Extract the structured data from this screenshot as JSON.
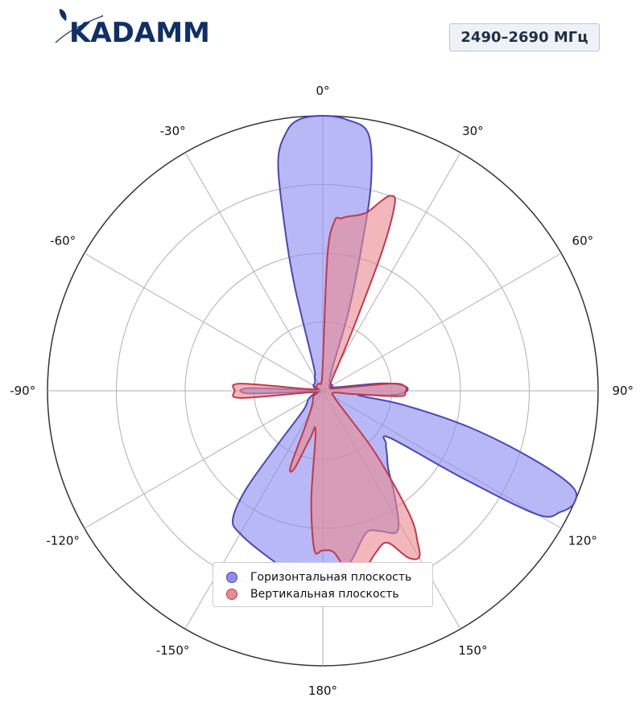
{
  "header": {
    "logo_text": "KADAMM",
    "frequency_badge": "2490–2690 МГц"
  },
  "colors": {
    "horizontal_fill": "#8c8cf0",
    "horizontal_stroke": "#4a46b8",
    "vertical_fill": "#e88a92",
    "vertical_stroke": "#c0394a",
    "grid": "#b0b0b0",
    "outer_ring": "#333333",
    "logo": "#0f2f66"
  },
  "chart_data": {
    "type": "polar-area",
    "angle_direction": "clockwise",
    "zero_position": "top",
    "angle_ticks": [
      0,
      30,
      60,
      90,
      120,
      150,
      180,
      -150,
      -120,
      -90,
      -60,
      -30
    ],
    "angle_tick_labels": [
      "0°",
      "30°",
      "60°",
      "90°",
      "120°",
      "150°",
      "180°",
      "-150°",
      "-120°",
      "-90°",
      "-60°",
      "-30°"
    ],
    "radial_grid": [
      0.25,
      0.5,
      0.75,
      1.0
    ],
    "rmax": 1.0,
    "legend_position": "bottom-center",
    "series": [
      {
        "name": "Горизонтальная плоскость",
        "points": [
          [
            0,
            1.0
          ],
          [
            5,
            0.99
          ],
          [
            10,
            0.95
          ],
          [
            13,
            0.78
          ],
          [
            15,
            0.55
          ],
          [
            18,
            0.3
          ],
          [
            22,
            0.1
          ],
          [
            30,
            0.05
          ],
          [
            45,
            0.04
          ],
          [
            60,
            0.04
          ],
          [
            75,
            0.05
          ],
          [
            83,
            0.22
          ],
          [
            87,
            0.3
          ],
          [
            91,
            0.3
          ],
          [
            94,
            0.24
          ],
          [
            97,
            0.13
          ],
          [
            100,
            0.3
          ],
          [
            104,
            0.55
          ],
          [
            108,
            0.8
          ],
          [
            111,
            0.97
          ],
          [
            114,
            1.0
          ],
          [
            117,
            0.97
          ],
          [
            120,
            0.9
          ],
          [
            122,
            0.6
          ],
          [
            125,
            0.3
          ],
          [
            130,
            0.3
          ],
          [
            135,
            0.33
          ],
          [
            140,
            0.37
          ],
          [
            145,
            0.45
          ],
          [
            150,
            0.55
          ],
          [
            153,
            0.58
          ],
          [
            158,
            0.55
          ],
          [
            163,
            0.54
          ],
          [
            170,
            0.62
          ],
          [
            175,
            0.68
          ],
          [
            180,
            0.69
          ],
          [
            185,
            0.68
          ],
          [
            190,
            0.67
          ],
          [
            200,
            0.63
          ],
          [
            210,
            0.6
          ],
          [
            215,
            0.57
          ],
          [
            218,
            0.45
          ],
          [
            220,
            0.25
          ],
          [
            225,
            0.1
          ],
          [
            240,
            0.06
          ],
          [
            255,
            0.03
          ],
          [
            265,
            0.03
          ],
          [
            268,
            0.27
          ],
          [
            272,
            0.27
          ],
          [
            275,
            0.03
          ],
          [
            285,
            0.03
          ],
          [
            300,
            0.04
          ],
          [
            315,
            0.04
          ],
          [
            330,
            0.06
          ],
          [
            340,
            0.1
          ],
          [
            345,
            0.4
          ],
          [
            347,
            0.62
          ],
          [
            349,
            0.85
          ],
          [
            352,
            0.95
          ],
          [
            355,
            0.99
          ],
          [
            360,
            1.0
          ]
        ]
      },
      {
        "name": "Вертикальная плоскость",
        "points": [
          [
            0,
            0.1
          ],
          [
            2,
            0.5
          ],
          [
            4,
            0.62
          ],
          [
            6,
            0.63
          ],
          [
            8,
            0.64
          ],
          [
            11,
            0.65
          ],
          [
            14,
            0.67
          ],
          [
            17,
            0.72
          ],
          [
            19,
            0.75
          ],
          [
            21,
            0.73
          ],
          [
            23,
            0.55
          ],
          [
            26,
            0.25
          ],
          [
            30,
            0.12
          ],
          [
            40,
            0.05
          ],
          [
            55,
            0.03
          ],
          [
            70,
            0.03
          ],
          [
            80,
            0.05
          ],
          [
            84,
            0.25
          ],
          [
            87,
            0.3
          ],
          [
            91,
            0.3
          ],
          [
            94,
            0.28
          ],
          [
            96,
            0.12
          ],
          [
            100,
            0.04
          ],
          [
            120,
            0.05
          ],
          [
            130,
            0.08
          ],
          [
            140,
            0.3
          ],
          [
            145,
            0.55
          ],
          [
            148,
            0.65
          ],
          [
            150,
            0.7
          ],
          [
            153,
            0.68
          ],
          [
            157,
            0.6
          ],
          [
            162,
            0.62
          ],
          [
            168,
            0.68
          ],
          [
            172,
            0.67
          ],
          [
            176,
            0.59
          ],
          [
            180,
            0.58
          ],
          [
            183,
            0.58
          ],
          [
            186,
            0.4
          ],
          [
            190,
            0.15
          ],
          [
            195,
            0.18
          ],
          [
            200,
            0.3
          ],
          [
            203,
            0.3
          ],
          [
            206,
            0.15
          ],
          [
            215,
            0.07
          ],
          [
            240,
            0.04
          ],
          [
            262,
            0.04
          ],
          [
            265,
            0.3
          ],
          [
            270,
            0.32
          ],
          [
            275,
            0.3
          ],
          [
            278,
            0.04
          ],
          [
            300,
            0.03
          ],
          [
            330,
            0.03
          ],
          [
            350,
            0.03
          ],
          [
            360,
            0.1
          ]
        ]
      }
    ]
  },
  "legend": {
    "horizontal_label": "Горизонтальная плоскость",
    "vertical_label": "Вертикальная плоскость"
  }
}
